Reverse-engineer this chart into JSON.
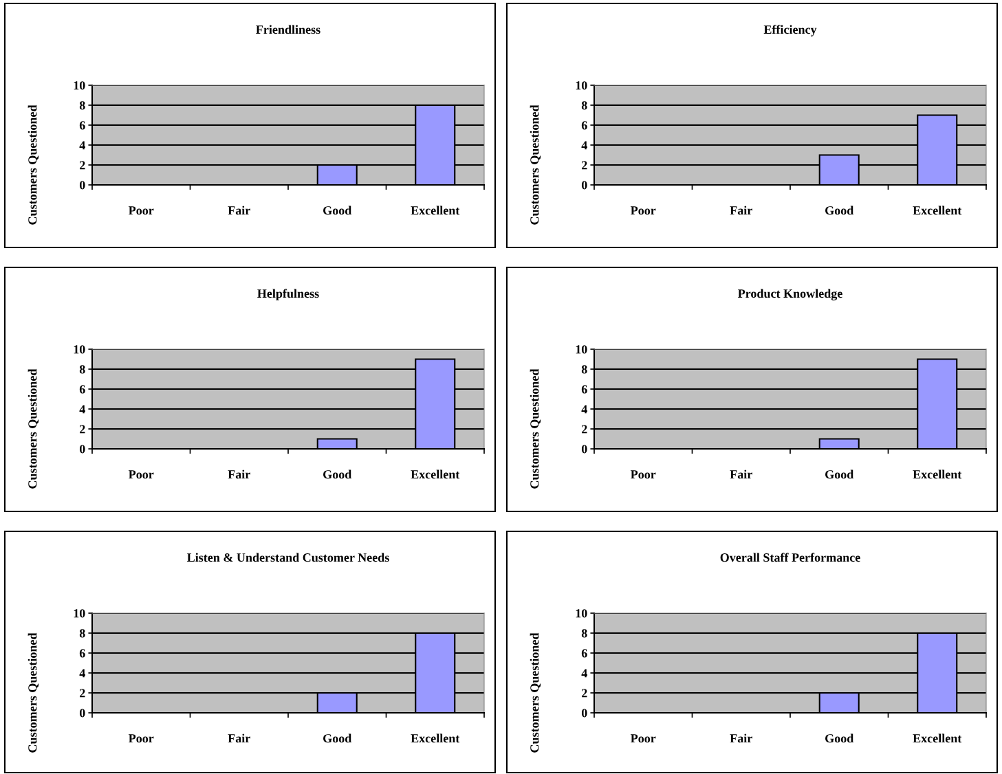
{
  "chart_data": [
    {
      "type": "bar",
      "title": "Friendliness",
      "ylabel": "Customers Questioned",
      "categories": [
        "Poor",
        "Fair",
        "Good",
        "Excellent"
      ],
      "values": [
        0,
        0,
        2,
        8
      ],
      "color": "#9999ff",
      "ylim": [
        0,
        10
      ],
      "yticks": [
        0,
        2,
        4,
        6,
        8,
        10
      ],
      "grid": "y"
    },
    {
      "type": "bar",
      "title": "Efficiency",
      "ylabel": "Customers Questioned",
      "categories": [
        "Poor",
        "Fair",
        "Good",
        "Excellent"
      ],
      "values": [
        0,
        0,
        3,
        7
      ],
      "color": "#9999ff",
      "ylim": [
        0,
        10
      ],
      "yticks": [
        0,
        2,
        4,
        6,
        8,
        10
      ],
      "grid": "y"
    },
    {
      "type": "bar",
      "title": "Helpfulness",
      "ylabel": "Customers Questioned",
      "categories": [
        "Poor",
        "Fair",
        "Good",
        "Excellent"
      ],
      "values": [
        0,
        0,
        1,
        9
      ],
      "color": "#9999ff",
      "ylim": [
        0,
        10
      ],
      "yticks": [
        0,
        2,
        4,
        6,
        8,
        10
      ],
      "grid": "y"
    },
    {
      "type": "bar",
      "title": "Product Knowledge",
      "ylabel": "Customers Questioned",
      "categories": [
        "Poor",
        "Fair",
        "Good",
        "Excellent"
      ],
      "values": [
        0,
        0,
        1,
        9
      ],
      "color": "#9999ff",
      "ylim": [
        0,
        10
      ],
      "yticks": [
        0,
        2,
        4,
        6,
        8,
        10
      ],
      "grid": "y"
    },
    {
      "type": "bar",
      "title": "Listen & Understand Customer Needs",
      "ylabel": "Customers Questioned",
      "categories": [
        "Poor",
        "Fair",
        "Good",
        "Excellent"
      ],
      "values": [
        0,
        0,
        2,
        8
      ],
      "color": "#9999ff",
      "ylim": [
        0,
        10
      ],
      "yticks": [
        0,
        2,
        4,
        6,
        8,
        10
      ],
      "grid": "y"
    },
    {
      "type": "bar",
      "title": "Overall Staff Performance",
      "ylabel": "Customers Questioned",
      "categories": [
        "Poor",
        "Fair",
        "Good",
        "Excellent"
      ],
      "values": [
        0,
        0,
        2,
        8
      ],
      "color": "#9999ff",
      "ylim": [
        0,
        10
      ],
      "yticks": [
        0,
        2,
        4,
        6,
        8,
        10
      ],
      "grid": "y"
    }
  ]
}
